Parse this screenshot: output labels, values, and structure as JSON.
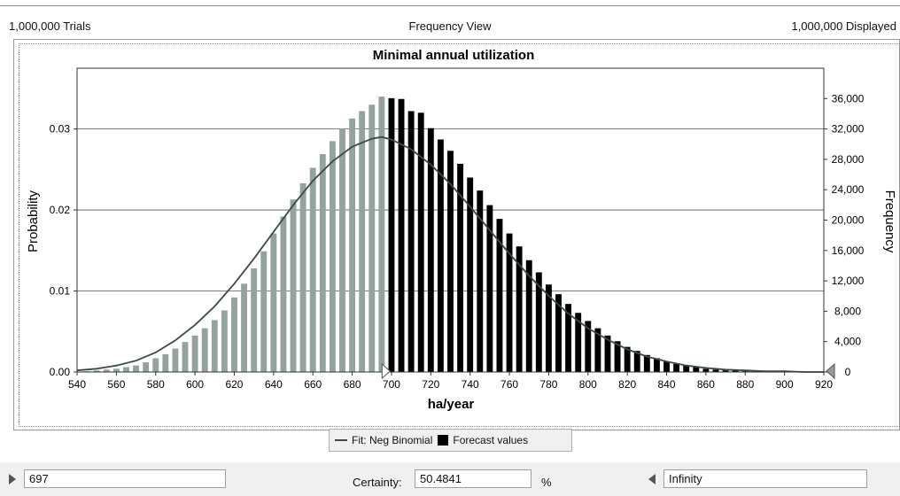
{
  "header": {
    "trials": "1,000,000 Trials",
    "view": "Frequency View",
    "displayed": "1,000,000 Displayed"
  },
  "chart_data": {
    "type": "bar",
    "title": "Minimal annual utilization",
    "xlabel": "ha/year",
    "ylabel_left": "Probability",
    "ylabel_right": "Frequency",
    "xlim": [
      540,
      920
    ],
    "ylim_left": [
      0,
      0.0375
    ],
    "ylim_right": [
      0,
      40000
    ],
    "x_ticks": [
      540,
      560,
      580,
      600,
      620,
      640,
      660,
      680,
      700,
      720,
      740,
      760,
      780,
      800,
      820,
      840,
      860,
      880,
      900,
      920
    ],
    "y_left_ticks": [
      "0.00",
      "0.01",
      "0.02",
      "0.03"
    ],
    "y_right_ticks": [
      "0",
      "4,000",
      "8,000",
      "12,000",
      "16,000",
      "20,000",
      "24,000",
      "28,000",
      "32,000",
      "36,000"
    ],
    "grid": "horizontal",
    "split_value": 697,
    "colors": {
      "below_split": "#94a3a0",
      "above_split": "#000000",
      "fit_line": "#3a4a48",
      "grid": "#555555"
    },
    "series": [
      {
        "name": "Forecast values",
        "x": [
          545,
          550,
          555,
          560,
          565,
          570,
          575,
          580,
          585,
          590,
          595,
          600,
          605,
          610,
          615,
          620,
          625,
          630,
          635,
          640,
          645,
          650,
          655,
          660,
          665,
          670,
          675,
          680,
          685,
          690,
          695,
          700,
          705,
          710,
          715,
          720,
          725,
          730,
          735,
          740,
          745,
          750,
          755,
          760,
          765,
          770,
          775,
          780,
          785,
          790,
          795,
          800,
          805,
          810,
          815,
          820,
          825,
          830,
          835,
          840,
          845,
          850,
          855,
          860,
          865,
          870,
          875,
          880,
          885,
          890,
          895,
          900,
          905,
          910,
          915
        ],
        "values": [
          0.0001,
          0.0002,
          0.0003,
          0.0004,
          0.0006,
          0.0008,
          0.0012,
          0.0017,
          0.0022,
          0.0029,
          0.0037,
          0.0045,
          0.0054,
          0.0064,
          0.0076,
          0.0092,
          0.0109,
          0.0128,
          0.0149,
          0.0171,
          0.0192,
          0.0213,
          0.0233,
          0.0252,
          0.0269,
          0.0285,
          0.03,
          0.0313,
          0.0322,
          0.033,
          0.034,
          0.0338,
          0.0337,
          0.0322,
          0.032,
          0.0301,
          0.0287,
          0.0273,
          0.0257,
          0.024,
          0.0224,
          0.0206,
          0.0189,
          0.0171,
          0.0155,
          0.0138,
          0.0123,
          0.0108,
          0.0096,
          0.0084,
          0.0073,
          0.0063,
          0.0054,
          0.0045,
          0.0038,
          0.0031,
          0.0026,
          0.0021,
          0.0017,
          0.0013,
          0.001,
          0.0008,
          0.0006,
          0.0004,
          0.0003,
          0.0002,
          0.0002,
          0.0001,
          0.0001,
          0.0001,
          0.0001,
          0,
          0,
          0,
          0
        ]
      },
      {
        "name": "Fit: Neg Binomial",
        "type": "line",
        "x": [
          540,
          550,
          560,
          570,
          580,
          590,
          600,
          610,
          620,
          630,
          640,
          650,
          660,
          670,
          680,
          690,
          695,
          700,
          710,
          720,
          730,
          740,
          750,
          760,
          770,
          780,
          790,
          800,
          810,
          820,
          830,
          840,
          850,
          860,
          870,
          880,
          890,
          900,
          910,
          920
        ],
        "values": [
          0.0002,
          0.0004,
          0.0008,
          0.0014,
          0.0024,
          0.0039,
          0.0058,
          0.0081,
          0.0109,
          0.014,
          0.0173,
          0.0206,
          0.0236,
          0.026,
          0.0278,
          0.0288,
          0.029,
          0.0287,
          0.0275,
          0.0256,
          0.0232,
          0.0204,
          0.0175,
          0.0146,
          0.0119,
          0.0094,
          0.0072,
          0.0054,
          0.004,
          0.0028,
          0.0019,
          0.0013,
          0.0008,
          0.0005,
          0.0003,
          0.0002,
          0.0001,
          0.0001,
          0,
          0
        ]
      }
    ]
  },
  "legend": {
    "fit_label": "Fit: Neg Binomial",
    "forecast_label": "Forecast values"
  },
  "controls": {
    "left_value": "697",
    "certainty_label": "Certainty:",
    "certainty_value": "50.4841",
    "percent_sign": "%",
    "right_value": "Infinity"
  }
}
